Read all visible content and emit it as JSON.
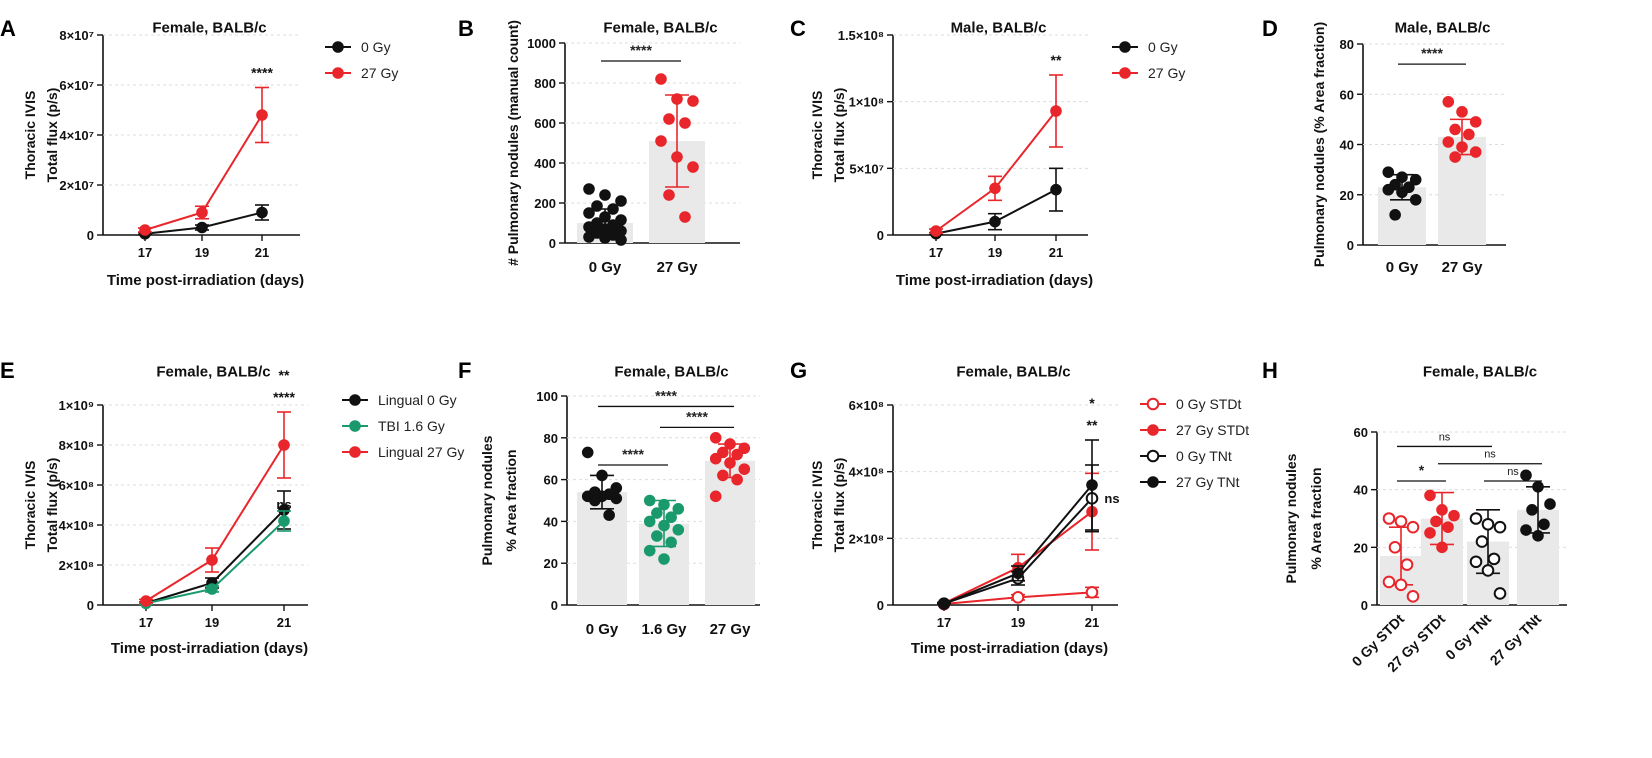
{
  "colors": {
    "black": "#111111",
    "red": "#e8262b",
    "green": "#1a9a6c",
    "bar": "#e9e9e9"
  },
  "chart_data": [
    {
      "panel": "A",
      "type": "line",
      "title": "Female, BALB/c",
      "ylabel": [
        "Thoracic IVIS",
        "Total flux (p/s)"
      ],
      "xlabel": "Time post-irradiation (days)",
      "x": [
        "17",
        "19",
        "21"
      ],
      "ylim": [
        0,
        80000000
      ],
      "yticks": [
        {
          "v": 0,
          "label": "0"
        },
        {
          "v": 20000000,
          "label": "2×10⁷"
        },
        {
          "v": 40000000,
          "label": "4×10⁷"
        },
        {
          "v": 60000000,
          "label": "6×10⁷"
        },
        {
          "v": 80000000,
          "label": "8×10⁷"
        }
      ],
      "series": [
        {
          "name": "0 Gy",
          "color": "black",
          "values": [
            500000,
            3000000,
            9000000
          ],
          "err": [
            400000,
            1000000,
            3000000
          ]
        },
        {
          "name": "27 Gy",
          "color": "red",
          "values": [
            2000000,
            9000000,
            48000000
          ],
          "err": [
            800000,
            2500000,
            11000000
          ]
        }
      ],
      "annotations": [
        {
          "text": "****",
          "at": 2
        }
      ]
    },
    {
      "panel": "B",
      "type": "bar_scatter",
      "title": "Female, BALB/c",
      "ylabel": [
        "# Pulmonary nodules (manual count)"
      ],
      "ylim": [
        0,
        1000
      ],
      "yticks": [
        {
          "v": 0,
          "label": "0"
        },
        {
          "v": 200,
          "label": "200"
        },
        {
          "v": 400,
          "label": "400"
        },
        {
          "v": 600,
          "label": "600"
        },
        {
          "v": 800,
          "label": "800"
        },
        {
          "v": 1000,
          "label": "1000"
        }
      ],
      "categories": [
        "0 Gy",
        "27 Gy"
      ],
      "groups": [
        {
          "color": "black",
          "mean": 100,
          "sd": 70,
          "points": [
            270,
            240,
            210,
            185,
            170,
            150,
            130,
            115,
            100,
            90,
            80,
            70,
            60,
            50,
            40,
            30,
            25,
            15
          ]
        },
        {
          "color": "red",
          "mean": 510,
          "sd": 230,
          "points": [
            820,
            720,
            710,
            620,
            600,
            510,
            430,
            380,
            240,
            130
          ]
        }
      ],
      "comparisons": [
        {
          "text": "****",
          "from": 0,
          "to": 1,
          "y": 910
        }
      ]
    },
    {
      "panel": "C",
      "type": "line",
      "title": "Male, BALB/c",
      "ylabel": [
        "Thoracic IVIS",
        "Total flux (p/s)"
      ],
      "xlabel": "Time post-irradiation (days)",
      "x": [
        "17",
        "19",
        "21"
      ],
      "ylim": [
        0,
        150000000
      ],
      "yticks": [
        {
          "v": 0,
          "label": "0"
        },
        {
          "v": 50000000,
          "label": "5×10⁷"
        },
        {
          "v": 100000000,
          "label": "1×10⁸"
        },
        {
          "v": 150000000,
          "label": "1.5×10⁸"
        }
      ],
      "series": [
        {
          "name": "0 Gy",
          "color": "black",
          "values": [
            1000000,
            10000000,
            34000000
          ],
          "err": [
            800000,
            6000000,
            16000000
          ]
        },
        {
          "name": "27 Gy",
          "color": "red",
          "values": [
            3000000,
            35000000,
            93000000
          ],
          "err": [
            1500000,
            9000000,
            27000000
          ]
        }
      ],
      "annotations": [
        {
          "text": "**",
          "at": 2
        }
      ]
    },
    {
      "panel": "D",
      "type": "bar_scatter",
      "title": "Male, BALB/c",
      "ylabel": [
        "Pulmonary nodules (% Area fraction)"
      ],
      "ylim": [
        0,
        80
      ],
      "yticks": [
        {
          "v": 0,
          "label": "0"
        },
        {
          "v": 20,
          "label": "20"
        },
        {
          "v": 40,
          "label": "40"
        },
        {
          "v": 60,
          "label": "60"
        },
        {
          "v": 80,
          "label": "80"
        }
      ],
      "categories": [
        "0 Gy",
        "27 Gy"
      ],
      "groups": [
        {
          "color": "black",
          "mean": 23,
          "sd": 5,
          "points": [
            29,
            27,
            26,
            24,
            23,
            22,
            21,
            18,
            12
          ]
        },
        {
          "color": "red",
          "mean": 43,
          "sd": 7,
          "points": [
            57,
            53,
            49,
            46,
            44,
            41,
            39,
            37,
            35
          ]
        }
      ],
      "comparisons": [
        {
          "text": "****",
          "from": 0,
          "to": 1,
          "y": 72
        }
      ]
    },
    {
      "panel": "E",
      "type": "line",
      "title": "Female, BALB/c",
      "ylabel": [
        "Thoracic IVIS",
        "Total flux (p/s)"
      ],
      "xlabel": "Time post-irradiation (days)",
      "x": [
        "17",
        "19",
        "21"
      ],
      "ylim": [
        0,
        1000000000
      ],
      "yticks": [
        {
          "v": 0,
          "label": "0"
        },
        {
          "v": 200000000,
          "label": "2×10⁸"
        },
        {
          "v": 400000000,
          "label": "4×10⁸"
        },
        {
          "v": 600000000,
          "label": "6×10⁸"
        },
        {
          "v": 800000000,
          "label": "8×10⁸"
        },
        {
          "v": 1000000000,
          "label": "1×10⁹"
        }
      ],
      "series": [
        {
          "name": "Lingual 0 Gy",
          "color": "black",
          "values": [
            10000000,
            110000000,
            475000000
          ],
          "err": [
            5000000,
            25000000,
            95000000
          ]
        },
        {
          "name": "TBI 1.6 Gy",
          "color": "green",
          "values": [
            8000000,
            80000000,
            420000000
          ],
          "err": [
            4000000,
            15000000,
            50000000
          ]
        },
        {
          "name": "Lingual 27 Gy",
          "color": "red",
          "values": [
            20000000,
            225000000,
            800000000
          ],
          "err": [
            8000000,
            60000000,
            165000000
          ]
        }
      ],
      "annotations": [
        {
          "text": "**",
          "at": 2,
          "row": 2
        },
        {
          "text": "****",
          "at": 2,
          "row": 1
        },
        {
          "text": "ns",
          "at": 2,
          "row": 0
        }
      ]
    },
    {
      "panel": "F",
      "type": "bar_scatter",
      "title": "Female, BALB/c",
      "ylabel": [
        "Pulmonary nodules",
        "% Area fraction"
      ],
      "ylim": [
        0,
        100
      ],
      "yticks": [
        {
          "v": 0,
          "label": "0"
        },
        {
          "v": 20,
          "label": "20"
        },
        {
          "v": 40,
          "label": "40"
        },
        {
          "v": 60,
          "label": "60"
        },
        {
          "v": 80,
          "label": "80"
        },
        {
          "v": 100,
          "label": "100"
        }
      ],
      "categories": [
        "0 Gy",
        "1.6 Gy",
        "27 Gy"
      ],
      "groups": [
        {
          "color": "black",
          "mean": 54,
          "sd": 8,
          "points": [
            73,
            62,
            56,
            54,
            53,
            52,
            52,
            51,
            50,
            43
          ]
        },
        {
          "color": "green",
          "mean": 39,
          "sd": 11,
          "points": [
            50,
            48,
            46,
            44,
            42,
            40,
            38,
            36,
            33,
            30,
            26,
            22
          ]
        },
        {
          "color": "red",
          "mean": 69,
          "sd": 8,
          "points": [
            80,
            77,
            75,
            73,
            72,
            70,
            68,
            65,
            62,
            60,
            52
          ]
        }
      ],
      "comparisons": [
        {
          "text": "****",
          "from": 0,
          "to": 1,
          "y": 67
        },
        {
          "text": "****",
          "from": 1,
          "to": 2,
          "y": 85
        },
        {
          "text": "****",
          "from": 0,
          "to": 2,
          "y": 95
        }
      ]
    },
    {
      "panel": "G",
      "type": "line",
      "title": "Female, BALB/c",
      "ylabel": [
        "Thoracic IVIS",
        "Total flux (p/s)"
      ],
      "xlabel": "Time post-irradiation (days)",
      "x": [
        "17",
        "19",
        "21"
      ],
      "ylim": [
        0,
        600000000
      ],
      "yticks": [
        {
          "v": 0,
          "label": "0"
        },
        {
          "v": 200000000,
          "label": "2×10⁸"
        },
        {
          "v": 400000000,
          "label": "4×10⁸"
        },
        {
          "v": 600000000,
          "label": "6×10⁸"
        }
      ],
      "series": [
        {
          "name": "0 Gy STDt",
          "color": "red",
          "open": true,
          "values": [
            3000000,
            23000000,
            38000000
          ],
          "err": [
            2000000,
            8000000,
            15000000
          ]
        },
        {
          "name": "27 Gy STDt",
          "color": "red",
          "open": false,
          "values": [
            5000000,
            112000000,
            280000000
          ],
          "err": [
            3000000,
            40000000,
            115000000
          ]
        },
        {
          "name": "0 Gy TNt",
          "color": "black",
          "open": true,
          "values": [
            4000000,
            80000000,
            320000000
          ],
          "err": [
            2000000,
            20000000,
            100000000
          ]
        },
        {
          "name": "27 Gy TNt",
          "color": "black",
          "open": false,
          "values": [
            4000000,
            95000000,
            360000000
          ],
          "err": [
            2000000,
            22000000,
            135000000
          ]
        }
      ],
      "annotations": [
        {
          "text": "*",
          "at": 2,
          "row": 2
        },
        {
          "text": "**",
          "at": 2,
          "row": 1
        },
        {
          "text": "ns",
          "at": 2,
          "row": 0
        }
      ]
    },
    {
      "panel": "H",
      "type": "bar_scatter",
      "title": "Female, BALB/c",
      "ylabel": [
        "Pulmonary nodules",
        "% Area fraction"
      ],
      "ylim": [
        0,
        60
      ],
      "yticks": [
        {
          "v": 0,
          "label": "0"
        },
        {
          "v": 20,
          "label": "20"
        },
        {
          "v": 40,
          "label": "40"
        },
        {
          "v": 60,
          "label": "60"
        }
      ],
      "categories": [
        "0 Gy STDt",
        "27 Gy STDt",
        "0 Gy TNt",
        "27 Gy TNt"
      ],
      "groups": [
        {
          "color": "red",
          "open": true,
          "mean": 17,
          "sd": 10,
          "points": [
            30,
            29,
            27,
            20,
            14,
            8,
            7,
            3
          ]
        },
        {
          "color": "red",
          "open": false,
          "mean": 30,
          "sd": 9,
          "points": [
            38,
            33,
            31,
            29,
            27,
            25,
            20
          ]
        },
        {
          "color": "black",
          "open": true,
          "mean": 22,
          "sd": 11,
          "points": [
            30,
            28,
            27,
            22,
            16,
            15,
            12,
            4
          ]
        },
        {
          "color": "black",
          "open": false,
          "mean": 33,
          "sd": 8,
          "points": [
            45,
            41,
            35,
            33,
            28,
            26,
            24
          ]
        }
      ],
      "comparisons": [
        {
          "text": "ns",
          "from": 0,
          "to": 2,
          "y": 55
        },
        {
          "text": "ns",
          "from": 1,
          "to": 3,
          "y": 49
        },
        {
          "text": "*",
          "from": 0,
          "to": 1,
          "y": 43
        },
        {
          "text": "ns",
          "from": 2,
          "to": 3,
          "y": 43
        }
      ]
    }
  ]
}
